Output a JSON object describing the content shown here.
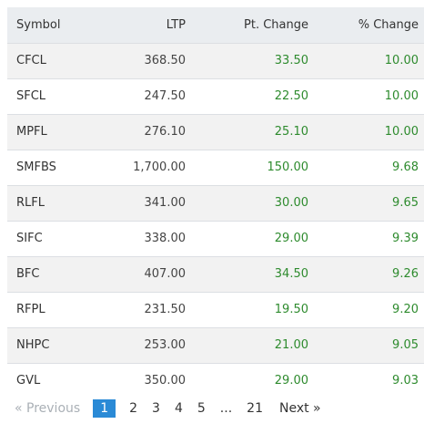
{
  "table": {
    "headers": {
      "symbol": "Symbol",
      "ltp": "LTP",
      "pt_change": "Pt. Change",
      "pct_change": "% Change"
    },
    "rows": [
      {
        "symbol": "CFCL",
        "ltp": "368.50",
        "pt_change": "33.50",
        "pct_change": "10.00"
      },
      {
        "symbol": "SFCL",
        "ltp": "247.50",
        "pt_change": "22.50",
        "pct_change": "10.00"
      },
      {
        "symbol": "MPFL",
        "ltp": "276.10",
        "pt_change": "25.10",
        "pct_change": "10.00"
      },
      {
        "symbol": "SMFBS",
        "ltp": "1,700.00",
        "pt_change": "150.00",
        "pct_change": "9.68"
      },
      {
        "symbol": "RLFL",
        "ltp": "341.00",
        "pt_change": "30.00",
        "pct_change": "9.65"
      },
      {
        "symbol": "SIFC",
        "ltp": "338.00",
        "pt_change": "29.00",
        "pct_change": "9.39"
      },
      {
        "symbol": "BFC",
        "ltp": "407.00",
        "pt_change": "34.50",
        "pct_change": "9.26"
      },
      {
        "symbol": "RFPL",
        "ltp": "231.50",
        "pt_change": "19.50",
        "pct_change": "9.20"
      },
      {
        "symbol": "NHPC",
        "ltp": "253.00",
        "pt_change": "21.00",
        "pct_change": "9.05"
      },
      {
        "symbol": "GVL",
        "ltp": "350.00",
        "pt_change": "29.00",
        "pct_change": "9.03"
      }
    ]
  },
  "pagination": {
    "previous": "« Previous",
    "pages": [
      "1",
      "2",
      "3",
      "4",
      "5"
    ],
    "active_page": "1",
    "ellipsis": "...",
    "last_page": "21",
    "next": "Next »"
  },
  "colors": {
    "header_bg": "#eaedf0",
    "gain_text": "#2e8b2e",
    "active_page_bg": "#2a8ad6"
  }
}
